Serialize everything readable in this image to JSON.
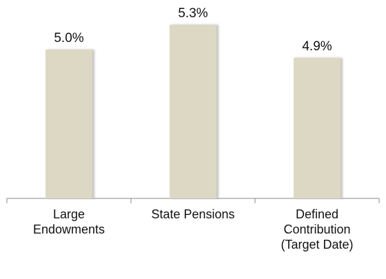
{
  "chart_data": {
    "type": "bar",
    "categories": [
      "Large Endowments",
      "State Pensions",
      "Defined Contribution (Target Date)"
    ],
    "values": [
      5.0,
      5.3,
      4.9
    ],
    "value_labels": [
      "5.0%",
      "5.3%",
      "4.9%"
    ],
    "color": "#ddd8c4",
    "ylim": [
      3.2,
      5.5
    ]
  }
}
